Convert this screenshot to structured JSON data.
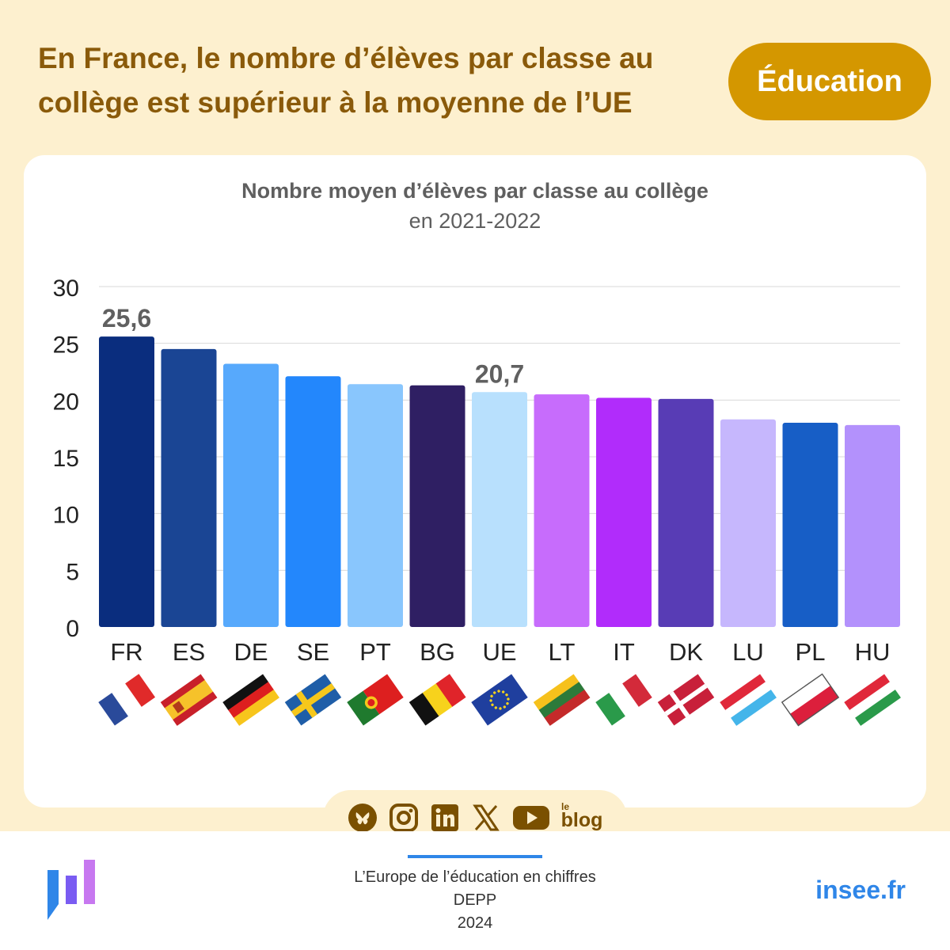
{
  "header": {
    "title_line1": "En France, le nombre d’élèves par classe au",
    "title_line2": "collège est supérieur à la moyenne de l’UE",
    "tag": "Éducation"
  },
  "colors": {
    "background": "#fdf0cf",
    "headline": "#8a5a0a",
    "tag": "#d49700",
    "accent_blue": "#2f86e8"
  },
  "chart_data": {
    "type": "bar",
    "title": "Nombre moyen d’élèves par classe au collège",
    "subtitle": "en 2021-2022",
    "categories": [
      "FR",
      "ES",
      "DE",
      "SE",
      "PT",
      "BG",
      "UE",
      "LT",
      "IT",
      "DK",
      "LU",
      "PL",
      "HU"
    ],
    "values": [
      25.6,
      24.5,
      23.2,
      22.1,
      21.4,
      21.3,
      20.7,
      20.5,
      20.2,
      20.1,
      18.3,
      18.0,
      17.8
    ],
    "bar_colors": [
      "#0a2d7e",
      "#1a4594",
      "#57a9fc",
      "#2387fc",
      "#89c6fd",
      "#2f1f63",
      "#b8e0fd",
      "#c76cfc",
      "#b12cfb",
      "#583cb5",
      "#c6b7fd",
      "#175ec6",
      "#b391fc"
    ],
    "data_labels": [
      {
        "category": "FR",
        "text": "25,6"
      },
      {
        "category": "UE",
        "text": "20,7"
      }
    ],
    "yticks": [
      "0",
      "5",
      "10",
      "15",
      "20",
      "25",
      "30"
    ],
    "ylim": [
      0,
      30
    ],
    "grid": true,
    "legend": "none",
    "flags": [
      "flag-france-icon",
      "flag-spain-icon",
      "flag-germany-icon",
      "flag-sweden-icon",
      "flag-portugal-icon",
      "flag-belgium-icon",
      "flag-eu-icon",
      "flag-lithuania-icon",
      "flag-italy-icon",
      "flag-denmark-icon",
      "flag-luxembourg-icon",
      "flag-poland-icon",
      "flag-hungary-icon"
    ]
  },
  "social": {
    "icons": [
      "bluesky-icon",
      "instagram-icon",
      "linkedin-icon",
      "x-icon",
      "youtube-icon",
      "blog-icon"
    ],
    "blog_small": "le",
    "blog_label": "blog"
  },
  "footer": {
    "line1": "L’Europe de l’éducation en chiffres",
    "line2": "DEPP",
    "line3": "2024",
    "site": "insee.fr"
  }
}
